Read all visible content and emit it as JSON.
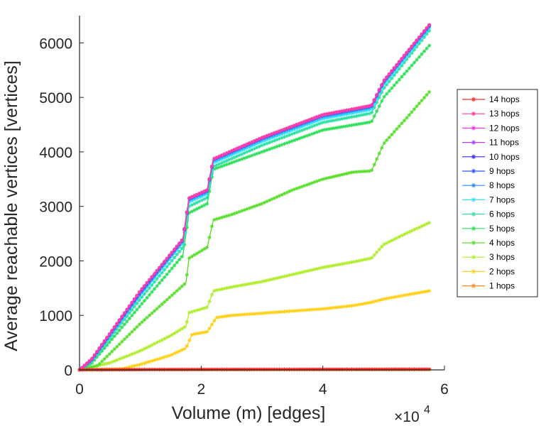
{
  "chart_data": {
    "type": "line",
    "xlabel": "Volume (m) [edges]",
    "ylabel": "Average reachable vertices [vertices]",
    "x_exponent_base": "×10",
    "x_exponent_power": "4",
    "xlim": [
      0,
      6
    ],
    "ylim": [
      0,
      6500
    ],
    "xticks": [
      "0",
      "2",
      "4",
      "6"
    ],
    "yticks": [
      "0",
      "1000",
      "2000",
      "3000",
      "4000",
      "5000",
      "6000"
    ],
    "legend_position": "right",
    "grid": false,
    "series": [
      {
        "name": "14 hops",
        "color": "#ff2a2a",
        "x": [
          0.0,
          0.1,
          1.0,
          2.0,
          3.0,
          4.0,
          5.0,
          5.75
        ],
        "values": [
          0,
          5,
          8,
          10,
          11,
          12,
          13,
          14
        ]
      },
      {
        "name": "13 hops",
        "color": "#ff3da0",
        "x": [
          0.0,
          0.2,
          1.0,
          1.7,
          1.8,
          2.1,
          2.2,
          3.0,
          4.0,
          4.8,
          5.0,
          5.75
        ],
        "values": [
          0,
          200,
          1450,
          2400,
          3150,
          3300,
          3870,
          4260,
          4680,
          4850,
          5300,
          6330
        ]
      },
      {
        "name": "12 hops",
        "color": "#ff33ff",
        "x": [
          0.0,
          0.2,
          1.0,
          1.7,
          1.8,
          2.1,
          2.2,
          3.0,
          4.0,
          4.8,
          5.0,
          5.75
        ],
        "values": [
          0,
          200,
          1450,
          2400,
          3150,
          3300,
          3870,
          4260,
          4680,
          4850,
          5300,
          6330
        ]
      },
      {
        "name": "11 hops",
        "color": "#b03cff",
        "x": [
          0.0,
          0.2,
          1.0,
          1.7,
          1.8,
          2.1,
          2.2,
          3.0,
          4.0,
          4.8,
          5.0,
          5.75
        ],
        "values": [
          0,
          200,
          1450,
          2400,
          3150,
          3300,
          3870,
          4260,
          4680,
          4850,
          5300,
          6330
        ]
      },
      {
        "name": "10 hops",
        "color": "#3a2cff",
        "x": [
          0.0,
          0.2,
          1.0,
          1.7,
          1.8,
          2.1,
          2.2,
          3.0,
          4.0,
          4.8,
          5.0,
          5.75
        ],
        "values": [
          0,
          200,
          1450,
          2400,
          3150,
          3300,
          3870,
          4260,
          4680,
          4850,
          5300,
          6330
        ]
      },
      {
        "name": "9 hops",
        "color": "#2f55ff",
        "x": [
          0.0,
          0.2,
          1.0,
          1.7,
          1.8,
          2.1,
          2.2,
          3.0,
          4.0,
          4.8,
          5.0,
          5.75
        ],
        "values": [
          0,
          190,
          1430,
          2390,
          3140,
          3290,
          3860,
          4250,
          4670,
          4840,
          5290,
          6320
        ]
      },
      {
        "name": "8 hops",
        "color": "#2f8cff",
        "x": [
          0.0,
          0.2,
          1.0,
          1.7,
          1.8,
          2.1,
          2.2,
          3.0,
          4.0,
          4.8,
          5.0,
          5.75
        ],
        "values": [
          0,
          180,
          1400,
          2370,
          3120,
          3270,
          3840,
          4230,
          4650,
          4820,
          5270,
          6300
        ]
      },
      {
        "name": "7 hops",
        "color": "#2fe0ff",
        "x": [
          0.0,
          0.2,
          1.0,
          1.7,
          1.8,
          2.1,
          2.2,
          3.0,
          4.0,
          4.8,
          5.0,
          5.75
        ],
        "values": [
          0,
          170,
          1370,
          2330,
          3080,
          3230,
          3800,
          4190,
          4610,
          4780,
          5230,
          6270
        ]
      },
      {
        "name": "6 hops",
        "color": "#2fe0a6",
        "x": [
          0.0,
          0.2,
          1.0,
          1.7,
          1.8,
          2.1,
          2.2,
          3.0,
          4.0,
          4.8,
          5.0,
          5.75
        ],
        "values": [
          0,
          150,
          1300,
          2250,
          3000,
          3160,
          3730,
          4120,
          4540,
          4710,
          5160,
          6220
        ]
      },
      {
        "name": "5 hops",
        "color": "#2fe05a",
        "x": [
          0.0,
          0.2,
          1.0,
          1.7,
          1.8,
          2.1,
          2.2,
          3.0,
          4.0,
          4.8,
          5.0,
          5.75
        ],
        "values": [
          0,
          120,
          1180,
          2100,
          2880,
          3050,
          3680,
          4000,
          4400,
          4550,
          5000,
          5950
        ]
      },
      {
        "name": "4 hops",
        "color": "#5adf2f",
        "x": [
          0.0,
          0.3,
          1.0,
          1.5,
          1.75,
          1.8,
          2.1,
          2.2,
          2.5,
          3.0,
          3.5,
          4.0,
          4.5,
          4.8,
          5.0,
          5.4,
          5.75
        ],
        "values": [
          0,
          80,
          850,
          1350,
          1600,
          2050,
          2250,
          2750,
          2850,
          3050,
          3300,
          3500,
          3630,
          3650,
          4150,
          4650,
          5100
        ]
      },
      {
        "name": "3 hops",
        "color": "#b2ee2f",
        "x": [
          0.0,
          0.5,
          1.0,
          1.5,
          1.75,
          1.8,
          2.1,
          2.2,
          2.5,
          3.0,
          3.5,
          4.0,
          4.5,
          4.8,
          5.0,
          5.4,
          5.75
        ],
        "values": [
          0,
          130,
          350,
          630,
          800,
          1050,
          1150,
          1450,
          1520,
          1620,
          1750,
          1880,
          1980,
          2050,
          2300,
          2520,
          2700
        ]
      },
      {
        "name": "2 hops",
        "color": "#ffd11a",
        "x": [
          0.0,
          0.7,
          1.0,
          1.5,
          1.75,
          1.85,
          2.1,
          2.25,
          2.5,
          3.0,
          3.5,
          4.0,
          4.5,
          4.8,
          5.0,
          5.5,
          5.75
        ],
        "values": [
          0,
          20,
          100,
          270,
          400,
          650,
          700,
          960,
          1000,
          1040,
          1080,
          1120,
          1180,
          1240,
          1300,
          1400,
          1450
        ]
      },
      {
        "name": "1 hops",
        "color": "#ff8c1a",
        "x": [
          0.0,
          1.0,
          2.0,
          3.0,
          4.0,
          5.0,
          5.75
        ],
        "values": [
          0,
          3,
          4,
          5,
          5,
          6,
          6
        ]
      }
    ]
  }
}
